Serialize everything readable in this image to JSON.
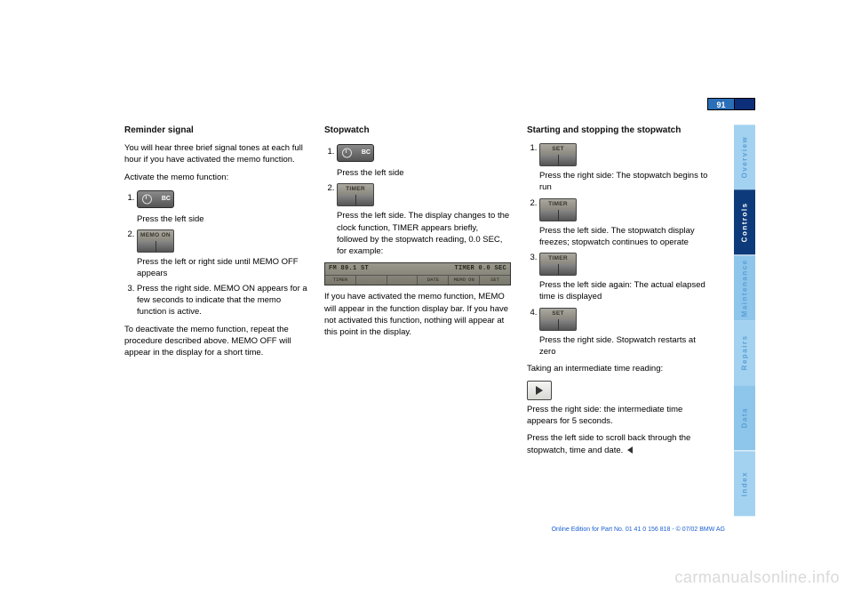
{
  "page_number": "91",
  "side_tabs": [
    "Overview",
    "Controls",
    "Maintenance",
    "Repairs",
    "Data",
    "Index"
  ],
  "col1": {
    "heading": "Reminder signal",
    "p1_a": "You will hear three brief signal tones at each full hour if you have activated the memo function.",
    "p1_b": "Activate the memo function:",
    "step1_text": "Press the left side",
    "step2_text": "Press the left or right side until MEMO OFF appears",
    "btn_memo": "MEMO ON",
    "step3": "Press the right side. MEMO ON appears for a few seconds to indicate that the memo function is active.",
    "p2": "To deactivate the memo function, repeat the procedure described above. MEMO OFF will appear in the display for a short time."
  },
  "col2": {
    "heading": "Stopwatch",
    "step1": "Press the left side",
    "btn_timer": "TIMER",
    "step2": "Press the left side. The display changes to the clock function, TIMER appears briefly, followed by the stopwatch reading, 0.0 SEC, for example:",
    "display_top_left": "FM  89.1 ST",
    "display_top_right": "TIMER  0.0 SEC",
    "display_bottom": [
      "TIMER",
      "",
      "",
      "DATE",
      "MEMO ON",
      "SET"
    ],
    "p1": "If you have activated the memo function, MEMO will appear in the function display bar. If you have not activated this function, nothing will appear at this point in the display."
  },
  "col3": {
    "heading": "Starting and stopping the stopwatch",
    "btn_set": "SET",
    "step1": "Press the right side: The stopwatch begins to run",
    "btn_timer": "TIMER",
    "step2": "Press the left side. The stopwatch display freezes; stopwatch continues to operate",
    "step3": "Press the left side again: The actual elapsed time is displayed",
    "step4": "Press the right side. Stopwatch restarts at zero",
    "p1": "Taking an intermediate time reading:",
    "dir_text": "Press the right side: the intermediate time appears for 5 seconds.",
    "p2": "Press the left side      to scroll back through the stopwatch, time and date."
  },
  "footer": "Online Edition for Part No. 01 41 0 156 818 - © 07/02 BMW AG",
  "watermark": "carmanualsonline.info"
}
